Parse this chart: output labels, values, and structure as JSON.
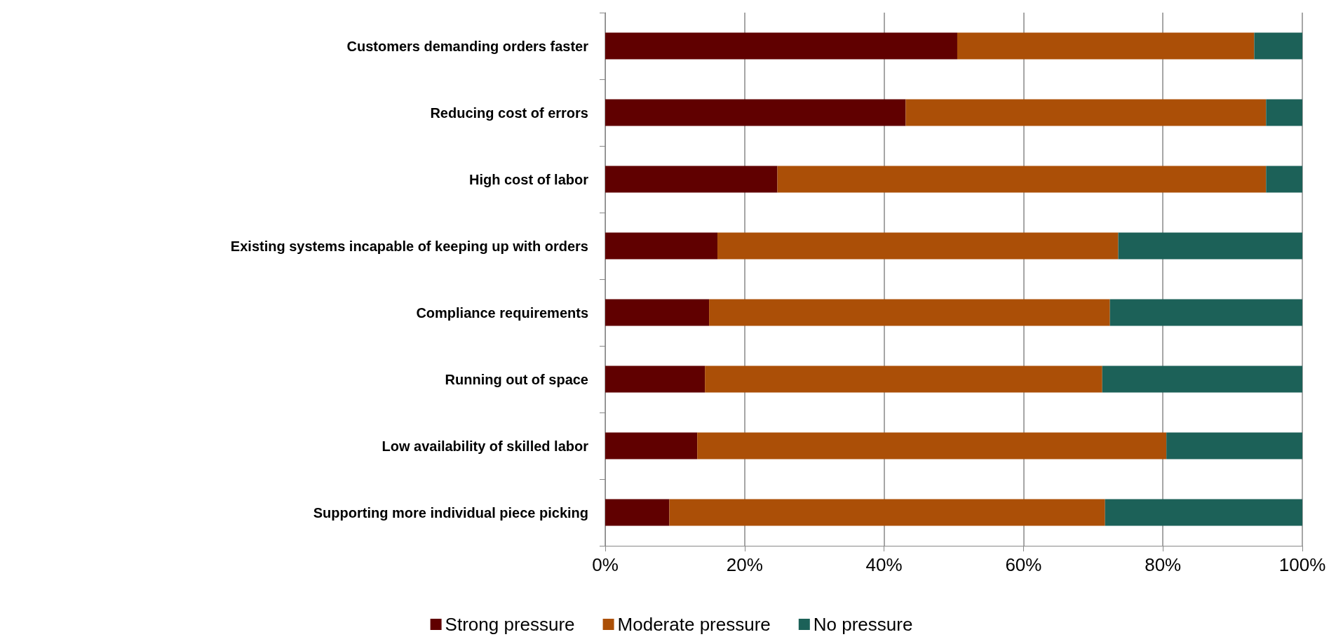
{
  "chart_data": {
    "type": "bar",
    "orientation": "horizontal",
    "stacked": true,
    "categories": [
      "Customers demanding orders faster",
      "Reducing cost of errors",
      "High cost of labor",
      "Existing systems incapable of keeping up with orders",
      "Compliance requirements",
      "Running out of space",
      "Low availability of skilled labor",
      "Supporting more individual piece picking"
    ],
    "series": [
      {
        "name": "Strong pressure",
        "color": "#600000",
        "values": [
          50.5,
          43.1,
          24.7,
          16.1,
          14.9,
          14.3,
          13.2,
          9.2
        ]
      },
      {
        "name": "Moderate pressure",
        "color": "#ab4f07",
        "values": [
          42.6,
          51.7,
          70.1,
          57.5,
          57.5,
          57.0,
          67.3,
          62.5
        ]
      },
      {
        "name": "No pressure",
        "color": "#1c6158",
        "values": [
          6.9,
          5.2,
          5.2,
          26.4,
          27.6,
          28.7,
          19.5,
          28.3
        ]
      }
    ],
    "xlim": [
      0,
      100
    ],
    "xticks": [
      {
        "value": 0,
        "label": "0%"
      },
      {
        "value": 20,
        "label": "20%"
      },
      {
        "value": 40,
        "label": "40%"
      },
      {
        "value": 60,
        "label": "60%"
      },
      {
        "value": 80,
        "label": "80%"
      },
      {
        "value": 100,
        "label": "100%"
      }
    ],
    "grid": "x",
    "legend": "bottom"
  }
}
